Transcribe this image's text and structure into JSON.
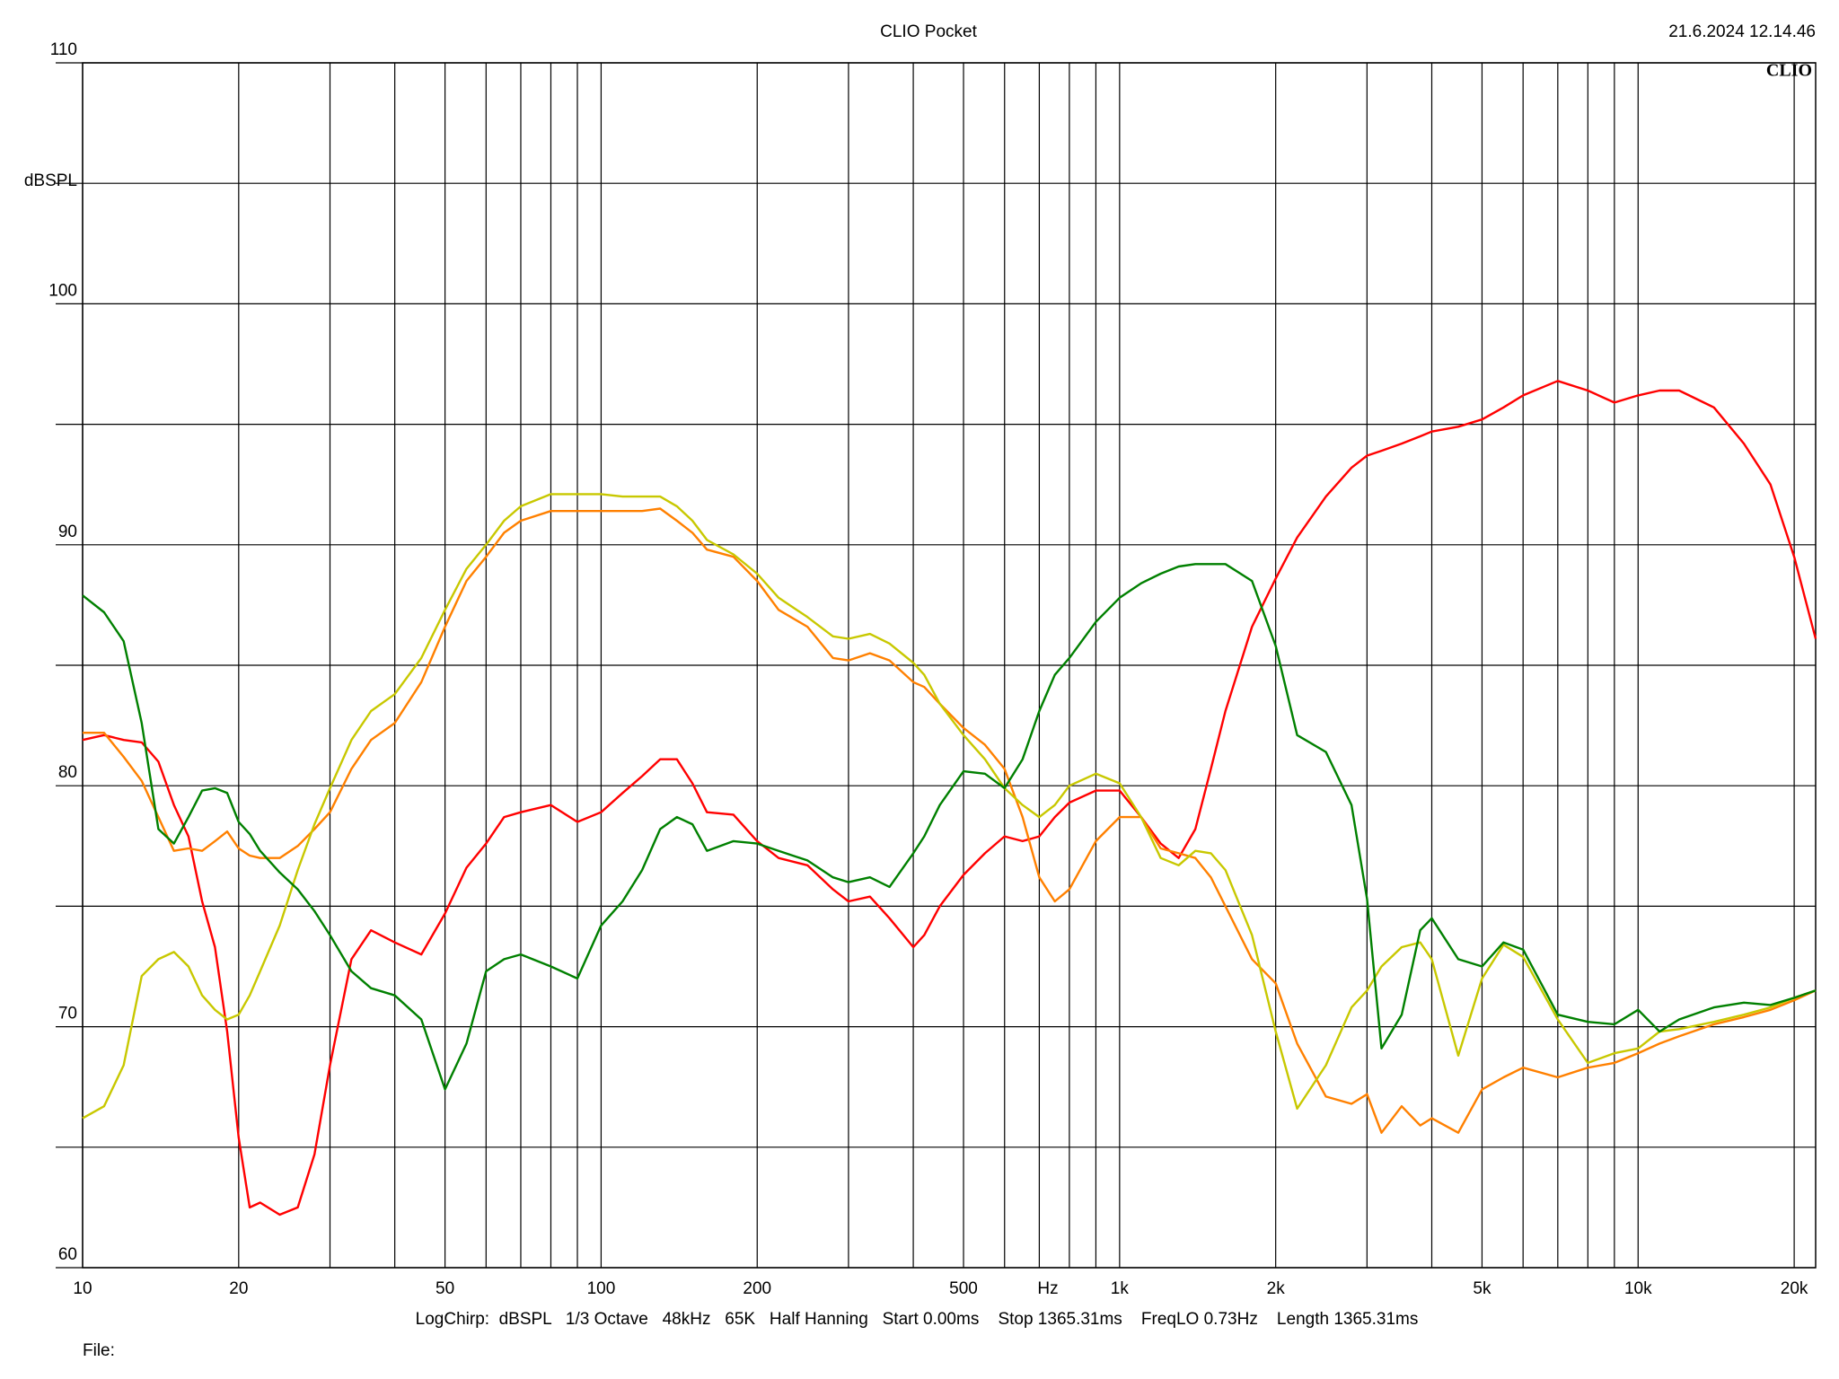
{
  "chart_data": {
    "type": "line",
    "title": "CLIO Pocket",
    "timestamp": "21.6.2024 12.14.46",
    "logo": "CLIO",
    "x_label": "Hz",
    "y_label": "dBSPL",
    "footer": "LogChirp:  dBSPL   1/3 Octave   48kHz   65K   Half Hanning   Start 0.00ms    Stop 1365.31ms    FreqLO 0.73Hz    Length 1365.31ms",
    "file_label": "File:",
    "xscale": "log",
    "grid": true,
    "xlim": [
      10,
      22000
    ],
    "ylim": [
      60,
      110
    ],
    "xticks": [
      10,
      20,
      50,
      100,
      200,
      500,
      {
        "value": 1000,
        "label": "1k"
      },
      {
        "value": 2000,
        "label": "2k"
      },
      {
        "value": 5000,
        "label": "5k"
      },
      {
        "value": 10000,
        "label": "10k"
      },
      {
        "value": 20000,
        "label": "20k"
      }
    ],
    "minor_xticks": [
      30,
      40,
      60,
      70,
      80,
      90,
      300,
      400,
      600,
      700,
      800,
      900,
      3000,
      4000,
      6000,
      7000,
      8000,
      9000
    ],
    "yticks": [
      60,
      70,
      80,
      90,
      100,
      110
    ],
    "minor_yticks": [
      65,
      75,
      85,
      95,
      105
    ],
    "x": [
      10,
      11,
      12,
      13,
      14,
      15,
      16,
      17,
      18,
      19,
      20,
      21,
      22,
      24,
      26,
      28,
      30,
      33,
      36,
      40,
      45,
      50,
      55,
      60,
      65,
      70,
      80,
      90,
      100,
      110,
      120,
      130,
      140,
      150,
      160,
      180,
      200,
      220,
      250,
      280,
      300,
      330,
      360,
      400,
      420,
      450,
      500,
      550,
      600,
      650,
      700,
      750,
      800,
      900,
      1000,
      1100,
      1200,
      1300,
      1400,
      1500,
      1600,
      1800,
      2000,
      2200,
      2500,
      2800,
      3000,
      3200,
      3500,
      3800,
      4000,
      4500,
      5000,
      5500,
      6000,
      7000,
      8000,
      9000,
      10000,
      11000,
      12000,
      14000,
      16000,
      18000,
      20000,
      22000
    ],
    "series": [
      {
        "color": "#ff0000",
        "values": [
          81.9,
          82.1,
          81.9,
          81.8,
          81.0,
          79.2,
          77.9,
          75.2,
          73.3,
          69.8,
          65.4,
          62.5,
          62.7,
          62.2,
          62.5,
          64.7,
          68.4,
          72.8,
          74.0,
          73.5,
          73.0,
          74.7,
          76.6,
          77.6,
          78.7,
          78.9,
          79.2,
          78.5,
          78.9,
          79.7,
          80.4,
          81.1,
          81.1,
          80.1,
          78.9,
          78.8,
          77.7,
          77.0,
          76.7,
          75.7,
          75.2,
          75.4,
          74.5,
          73.3,
          73.8,
          75.0,
          76.3,
          77.2,
          77.9,
          77.7,
          77.9,
          78.7,
          79.3,
          79.8,
          79.8,
          78.7,
          77.6,
          77.0,
          78.2,
          80.7,
          83.1,
          86.6,
          88.6,
          90.3,
          92.0,
          93.2,
          93.7,
          93.9,
          94.2,
          94.5,
          94.7,
          94.9,
          95.2,
          95.7,
          96.2,
          96.8,
          96.4,
          95.9,
          96.2,
          96.4,
          96.4,
          95.7,
          94.2,
          92.5,
          89.5,
          86.1
        ]
      },
      {
        "color": "#ff8000",
        "values": [
          82.2,
          82.2,
          81.2,
          80.2,
          78.7,
          77.3,
          77.4,
          77.3,
          77.7,
          78.1,
          77.4,
          77.1,
          77.0,
          77.0,
          77.5,
          78.2,
          78.9,
          80.7,
          81.9,
          82.6,
          84.3,
          86.6,
          88.5,
          89.5,
          90.5,
          91.0,
          91.4,
          91.4,
          91.4,
          91.4,
          91.4,
          91.5,
          91.0,
          90.5,
          89.8,
          89.5,
          88.5,
          87.3,
          86.6,
          85.3,
          85.2,
          85.5,
          85.2,
          84.3,
          84.1,
          83.4,
          82.4,
          81.7,
          80.7,
          78.7,
          76.2,
          75.2,
          75.7,
          77.7,
          78.7,
          78.7,
          77.4,
          77.2,
          77.0,
          76.2,
          75.0,
          72.8,
          71.8,
          69.3,
          67.1,
          66.8,
          67.2,
          65.6,
          66.7,
          65.9,
          66.2,
          65.6,
          67.4,
          67.9,
          68.3,
          67.9,
          68.3,
          68.5,
          68.9,
          69.3,
          69.6,
          70.1,
          70.4,
          70.7,
          71.1,
          71.5
        ]
      },
      {
        "color": "#c8c800",
        "values": [
          66.2,
          66.7,
          68.4,
          72.1,
          72.8,
          73.1,
          72.5,
          71.3,
          70.7,
          70.3,
          70.5,
          71.3,
          72.3,
          74.2,
          76.5,
          78.4,
          79.9,
          81.9,
          83.1,
          83.8,
          85.3,
          87.3,
          89.0,
          90.0,
          91.0,
          91.6,
          92.1,
          92.1,
          92.1,
          92.0,
          92.0,
          92.0,
          91.6,
          91.0,
          90.2,
          89.6,
          88.8,
          87.8,
          87.0,
          86.2,
          86.1,
          86.3,
          85.9,
          85.1,
          84.6,
          83.4,
          82.1,
          81.1,
          79.9,
          79.2,
          78.7,
          79.2,
          80.0,
          80.5,
          80.1,
          78.7,
          77.0,
          76.7,
          77.3,
          77.2,
          76.5,
          73.8,
          69.8,
          66.6,
          68.4,
          70.8,
          71.5,
          72.5,
          73.3,
          73.5,
          72.8,
          68.8,
          72.0,
          73.4,
          72.9,
          70.3,
          68.5,
          68.9,
          69.1,
          69.8,
          69.9,
          70.2,
          70.5,
          70.8,
          71.2,
          71.5
        ]
      },
      {
        "color": "#008000",
        "values": [
          87.9,
          87.2,
          86.0,
          82.6,
          78.2,
          77.6,
          78.7,
          79.8,
          79.9,
          79.7,
          78.5,
          78.0,
          77.3,
          76.4,
          75.7,
          74.8,
          73.8,
          72.3,
          71.6,
          71.3,
          70.3,
          67.4,
          69.3,
          72.3,
          72.8,
          73.0,
          72.5,
          72.0,
          74.2,
          75.2,
          76.5,
          78.2,
          78.7,
          78.4,
          77.3,
          77.7,
          77.6,
          77.3,
          76.9,
          76.2,
          76.0,
          76.2,
          75.8,
          77.2,
          77.9,
          79.2,
          80.6,
          80.5,
          79.9,
          81.1,
          83.1,
          84.6,
          85.3,
          86.8,
          87.8,
          88.4,
          88.8,
          89.1,
          89.2,
          89.2,
          89.2,
          88.5,
          85.8,
          82.1,
          81.4,
          79.2,
          75.3,
          69.1,
          70.5,
          74.0,
          74.5,
          72.8,
          72.5,
          73.5,
          73.2,
          70.5,
          70.2,
          70.1,
          70.7,
          69.8,
          70.3,
          70.8,
          71.0,
          70.9,
          71.2,
          71.5
        ]
      }
    ]
  }
}
